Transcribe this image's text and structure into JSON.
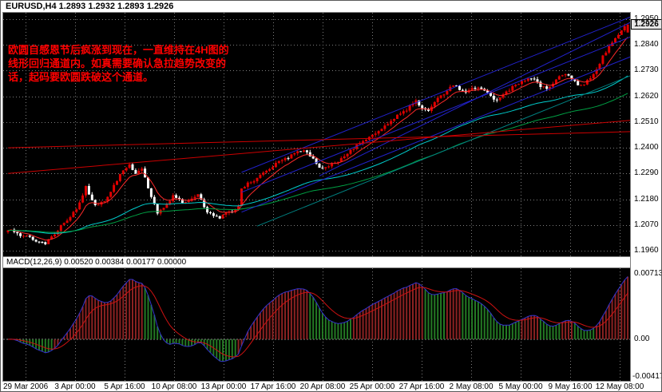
{
  "header": {
    "title": "EURUSD,H4 1.2893 1.2932 1.2893 1.2926"
  },
  "annotation": {
    "color": "#ff0000",
    "lines": [
      "欧圆自感恩节后疯涨到现在，一直维持在4H图的",
      "线形回归通道内。如真需要确认急拉趋势改变的",
      "话，起码要欧圆跌破这个通道。"
    ]
  },
  "price_axis": {
    "max": 1.295,
    "min": 1.196,
    "labels": [
      "1.2950",
      "1.2840",
      "1.2730",
      "1.2620",
      "1.2510",
      "1.2400",
      "1.2290",
      "1.2180",
      "1.2070",
      "1.1960"
    ],
    "current": {
      "label": "1.2926",
      "value": 1.2926
    }
  },
  "time_axis": {
    "labels": [
      "29 Mar 2006",
      "3 Apr 00:00",
      "5 Apr 16:00",
      "10 Apr 08:00",
      "13 Apr 00:00",
      "17 Apr 16:00",
      "20 Apr 08:00",
      "25 Apr 00:00",
      "27 Apr 16:00",
      "2 May 08:00",
      "5 May 00:00",
      "9 May 16:00",
      "12 May 08:00"
    ]
  },
  "macd_panel": {
    "label": "MACD(12,26,9) 0.00520 0.00384 0.00177 0.00000",
    "axis": {
      "max": 0.00713,
      "min": -0.00417,
      "max_label": "0.00713",
      "zero_label": "0.00",
      "min_label": "-0.00417"
    }
  },
  "chart_data": {
    "type": "candlestick",
    "symbol": "EURUSD",
    "timeframe": "H4",
    "visible_range": {
      "start": "29 Mar 2006",
      "end": "12 May 08:00",
      "price_max": 1.295,
      "price_min": 1.196
    },
    "ohlc_last": {
      "open": 1.2893,
      "high": 1.2932,
      "low": 1.2893,
      "close": 1.2926
    },
    "bars": 200,
    "price_keyframes": [
      [
        0,
        1.205
      ],
      [
        4,
        1.2025
      ],
      [
        8,
        1.201
      ],
      [
        12,
        1.199
      ],
      [
        16,
        1.205
      ],
      [
        20,
        1.211
      ],
      [
        23,
        1.216
      ],
      [
        25,
        1.223
      ],
      [
        28,
        1.2155
      ],
      [
        31,
        1.2165
      ],
      [
        34,
        1.224
      ],
      [
        37,
        1.2305
      ],
      [
        39,
        1.233
      ],
      [
        41,
        1.229
      ],
      [
        43,
        1.2315
      ],
      [
        46,
        1.219
      ],
      [
        48,
        1.2125
      ],
      [
        51,
        1.216
      ],
      [
        53,
        1.2195
      ],
      [
        56,
        1.2165
      ],
      [
        59,
        1.218
      ],
      [
        61,
        1.2205
      ],
      [
        64,
        1.212
      ],
      [
        68,
        1.21
      ],
      [
        71,
        1.2125
      ],
      [
        74,
        1.2145
      ],
      [
        75,
        1.223
      ],
      [
        78,
        1.2255
      ],
      [
        82,
        1.229
      ],
      [
        86,
        1.233
      ],
      [
        90,
        1.2355
      ],
      [
        93,
        1.2385
      ],
      [
        95,
        1.2395
      ],
      [
        98,
        1.235
      ],
      [
        100,
        1.231
      ],
      [
        103,
        1.2325
      ],
      [
        106,
        1.2345
      ],
      [
        110,
        1.2385
      ],
      [
        113,
        1.242
      ],
      [
        116,
        1.2445
      ],
      [
        119,
        1.247
      ],
      [
        122,
        1.2505
      ],
      [
        125,
        1.254
      ],
      [
        128,
        1.2565
      ],
      [
        131,
        1.26
      ],
      [
        133,
        1.2575
      ],
      [
        135,
        1.256
      ],
      [
        137,
        1.2595
      ],
      [
        139,
        1.2625
      ],
      [
        141,
        1.2645
      ],
      [
        143,
        1.2665
      ],
      [
        145,
        1.265
      ],
      [
        147,
        1.2635
      ],
      [
        149,
        1.265
      ],
      [
        151,
        1.266
      ],
      [
        153,
        1.2645
      ],
      [
        155,
        1.262
      ],
      [
        157,
        1.2605
      ],
      [
        159,
        1.2625
      ],
      [
        161,
        1.265
      ],
      [
        163,
        1.267
      ],
      [
        165,
        1.2685
      ],
      [
        167,
        1.2695
      ],
      [
        169,
        1.269
      ],
      [
        171,
        1.266
      ],
      [
        173,
        1.2655
      ],
      [
        175,
        1.268
      ],
      [
        177,
        1.27
      ],
      [
        179,
        1.2715
      ],
      [
        181,
        1.27
      ],
      [
        183,
        1.267
      ],
      [
        185,
        1.2675
      ],
      [
        187,
        1.27
      ],
      [
        189,
        1.274
      ],
      [
        191,
        1.279
      ],
      [
        193,
        1.283
      ],
      [
        195,
        1.287
      ],
      [
        197,
        1.2905
      ],
      [
        199,
        1.2926
      ]
    ],
    "render_hints": {
      "seed": 12,
      "body_noise": 0.0014,
      "wick_noise": 0.0011
    },
    "colors": {
      "up": "#e00000",
      "down": "#ffffff",
      "grid": "#7d7d7d"
    },
    "indicators": {
      "moving_averages": [
        {
          "period": 8,
          "color": "#ff2a2a"
        },
        {
          "period": 55,
          "color": "#00cccc"
        },
        {
          "period": 90,
          "color": "#00a044"
        }
      ],
      "macd": {
        "fast": 12,
        "slow": 26,
        "signal": 9,
        "colors": {
          "line": "#3333cc",
          "signal": "#cc1111",
          "hist_pos": "#8b2222",
          "hist_neg": "#247a24",
          "zero": "#909090"
        }
      }
    },
    "trendlines": [
      {
        "name": "regression-channel-upper",
        "from": [
          75,
          1.2295
        ],
        "to": [
          203,
          1.2976
        ],
        "color": "#2222cc",
        "width": 1
      },
      {
        "name": "regression-channel-median",
        "from": [
          75,
          1.221
        ],
        "to": [
          203,
          1.2891
        ],
        "color": "#2222cc",
        "width": 1
      },
      {
        "name": "regression-channel-lower",
        "from": [
          75,
          1.2125
        ],
        "to": [
          203,
          1.2806
        ],
        "color": "#2222cc",
        "width": 1
      },
      {
        "name": "inner-trendline",
        "from": [
          100,
          1.228
        ],
        "to": [
          203,
          1.2957
        ],
        "color": "#2222cc",
        "width": 1
      },
      {
        "name": "teal-support-line",
        "from": [
          80,
          1.2065
        ],
        "to": [
          203,
          1.2725
        ],
        "color": "#008080",
        "width": 1
      },
      {
        "name": "red-rising-line",
        "from": [
          0,
          1.229
        ],
        "to": [
          203,
          1.2521
        ],
        "color": "#cc0000",
        "width": 1
      },
      {
        "name": "red-flat-line",
        "from": [
          0,
          1.24
        ],
        "to": [
          203,
          1.247
        ],
        "color": "#cc0000",
        "width": 1
      }
    ]
  }
}
